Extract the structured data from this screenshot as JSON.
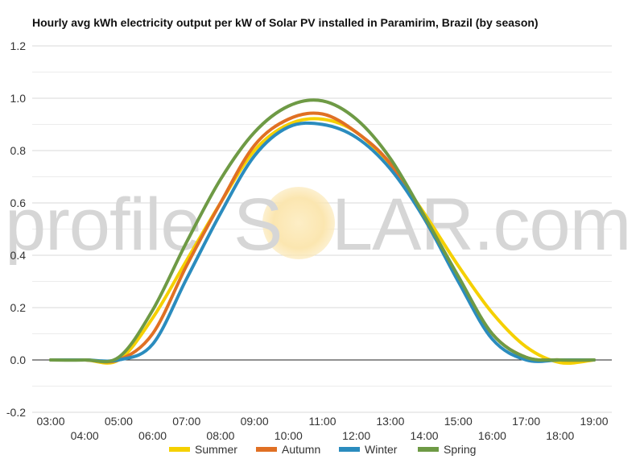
{
  "chart_data": {
    "type": "line",
    "title": "Hourly avg kWh electricity output per kW of Solar PV installed in Paramirim, Brazil (by season)",
    "xlabel": "",
    "ylabel": "",
    "x": [
      "03:00",
      "04:00",
      "05:00",
      "06:00",
      "07:00",
      "08:00",
      "09:00",
      "10:00",
      "11:00",
      "12:00",
      "13:00",
      "14:00",
      "15:00",
      "16:00",
      "17:00",
      "18:00",
      "19:00"
    ],
    "x_ticks_upper": [
      "03:00",
      "05:00",
      "07:00",
      "09:00",
      "11:00",
      "13:00",
      "15:00",
      "17:00",
      "19:00"
    ],
    "x_ticks_lower": [
      "04:00",
      "06:00",
      "08:00",
      "10:00",
      "12:00",
      "14:00",
      "16:00",
      "18:00"
    ],
    "y_ticks": [
      "1.2",
      "1.0",
      "0.8",
      "0.6",
      "0.4",
      "0.2",
      "0.0",
      "-0.2"
    ],
    "ylim": [
      -0.2,
      1.2
    ],
    "grid": true,
    "legend_position": "bottom",
    "series": [
      {
        "name": "Summer",
        "color": "#f5d000",
        "values": [
          0,
          0,
          0,
          0.16,
          0.38,
          0.6,
          0.8,
          0.9,
          0.92,
          0.87,
          0.74,
          0.56,
          0.36,
          0.18,
          0.05,
          -0.01,
          0
        ]
      },
      {
        "name": "Autumn",
        "color": "#e07024",
        "values": [
          0,
          0,
          0,
          0.1,
          0.36,
          0.6,
          0.82,
          0.92,
          0.94,
          0.87,
          0.75,
          0.54,
          0.31,
          0.1,
          0.01,
          0,
          0
        ]
      },
      {
        "name": "Winter",
        "color": "#2b8cbe",
        "values": [
          0,
          0,
          0,
          0.06,
          0.31,
          0.56,
          0.78,
          0.89,
          0.9,
          0.85,
          0.73,
          0.54,
          0.3,
          0.08,
          0,
          0,
          0
        ]
      },
      {
        "name": "Spring",
        "color": "#6e9a45",
        "values": [
          0,
          0,
          0.01,
          0.19,
          0.45,
          0.69,
          0.87,
          0.97,
          0.99,
          0.92,
          0.77,
          0.55,
          0.32,
          0.1,
          0.01,
          0,
          0
        ]
      }
    ]
  },
  "watermark": {
    "left": "profile",
    "right": "LAR.com",
    "s": "S"
  }
}
